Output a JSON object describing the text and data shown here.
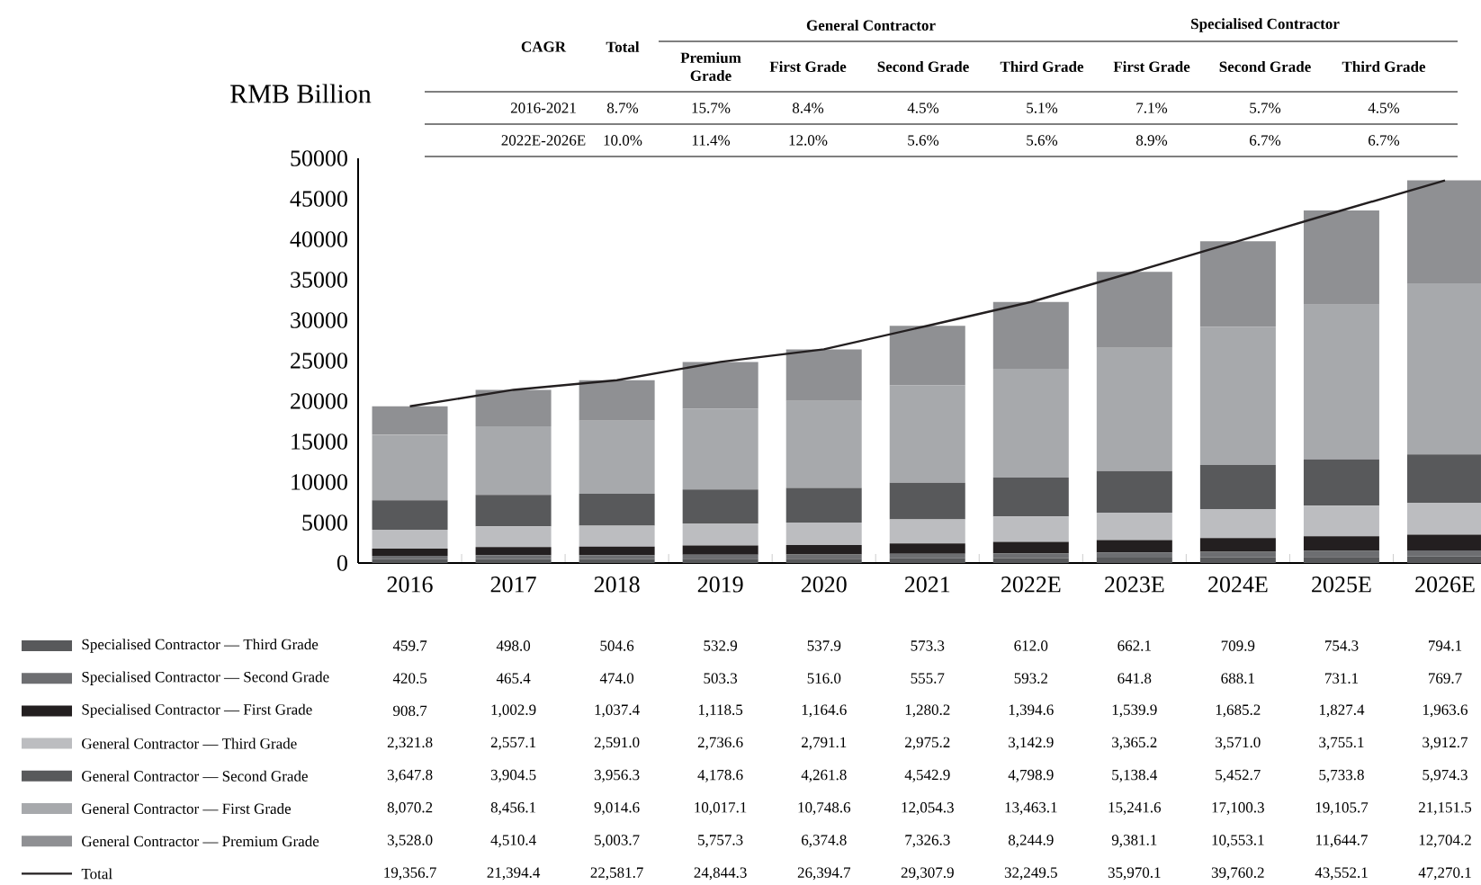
{
  "chart_data": {
    "type": "bar",
    "stacked": true,
    "ylabel": "RMB Billion",
    "categories": [
      "2016",
      "2017",
      "2018",
      "2019",
      "2020",
      "2021",
      "2022E",
      "2023E",
      "2024E",
      "2025E",
      "2026E"
    ],
    "ylim": [
      0,
      50000
    ],
    "yticks": [
      0,
      5000,
      10000,
      15000,
      20000,
      25000,
      30000,
      35000,
      40000,
      45000,
      50000
    ],
    "legend": "bottom",
    "marker": "none",
    "line_style": "solid",
    "annotations": [
      "CAGR",
      "Total",
      "General Contractor",
      "Specialised Contractor",
      "Premium Grade",
      "First Grade",
      "Second Grade",
      "Third Grade",
      "First Grade",
      "Second Grade",
      "Third Grade",
      "2016-2021",
      "8.7%",
      "15.7%",
      "8.4%",
      "4.5%",
      "5.1%",
      "7.1%",
      "5.7%",
      "4.5%",
      "2022E-2026E",
      "10.0%",
      "11.4%",
      "12.0%",
      "5.6%",
      "5.6%",
      "8.9%",
      "6.7%",
      "6.7%"
    ],
    "series": [
      {
        "name": "Specialised Contractor — Third Grade",
        "color": "#58595b",
        "values": [
          459.7,
          498.0,
          504.6,
          532.9,
          537.9,
          573.3,
          612.0,
          662.1,
          709.9,
          754.3,
          794.1
        ],
        "value_labels": [
          "459.7",
          "498.0",
          "504.6",
          "532.9",
          "537.9",
          "573.3",
          "612.0",
          "662.1",
          "709.9",
          "754.3",
          "794.1"
        ]
      },
      {
        "name": "Specialised Contractor — Second Grade",
        "color": "#6d6e71",
        "values": [
          420.5,
          465.4,
          474.0,
          503.3,
          516.0,
          555.7,
          593.2,
          641.8,
          688.1,
          731.1,
          769.7
        ],
        "value_labels": [
          "420.5",
          "465.4",
          "474.0",
          "503.3",
          "516.0",
          "555.7",
          "593.2",
          "641.8",
          "688.1",
          "731.1",
          "769.7"
        ]
      },
      {
        "name": "Specialised Contractor — First Grade",
        "color": "#231f20",
        "values": [
          908.7,
          1002.9,
          1037.4,
          1118.5,
          1164.6,
          1280.2,
          1394.6,
          1539.9,
          1685.2,
          1827.4,
          1963.6
        ],
        "value_labels": [
          "908.7",
          "1,002.9",
          "1,037.4",
          "1,118.5",
          "1,164.6",
          "1,280.2",
          "1,394.6",
          "1,539.9",
          "1,685.2",
          "1,827.4",
          "1,963.6"
        ]
      },
      {
        "name": "General Contractor — Third Grade",
        "color": "#bcbdc0",
        "values": [
          2321.8,
          2557.1,
          2591.0,
          2736.6,
          2791.1,
          2975.2,
          3142.9,
          3365.2,
          3571.0,
          3755.1,
          3912.7
        ],
        "value_labels": [
          "2,321.8",
          "2,557.1",
          "2,591.0",
          "2,736.6",
          "2,791.1",
          "2,975.2",
          "3,142.9",
          "3,365.2",
          "3,571.0",
          "3,755.1",
          "3,912.7"
        ]
      },
      {
        "name": "General Contractor — Second Grade",
        "color": "#58595b",
        "values": [
          3647.8,
          3904.5,
          3956.3,
          4178.6,
          4261.8,
          4542.9,
          4798.9,
          5138.4,
          5452.7,
          5733.8,
          5974.3
        ],
        "value_labels": [
          "3,647.8",
          "3,904.5",
          "3,956.3",
          "4,178.6",
          "4,261.8",
          "4,542.9",
          "4,798.9",
          "5,138.4",
          "5,452.7",
          "5,733.8",
          "5,974.3"
        ]
      },
      {
        "name": "General Contractor — First Grade",
        "color": "#a7a9ac",
        "values": [
          8070.2,
          8456.1,
          9014.6,
          10017.1,
          10748.6,
          12054.3,
          13463.1,
          15241.6,
          17100.3,
          19105.7,
          21151.5
        ],
        "value_labels": [
          "8,070.2",
          "8,456.1",
          "9,014.6",
          "10,017.1",
          "10,748.6",
          "12,054.3",
          "13,463.1",
          "15,241.6",
          "17,100.3",
          "19,105.7",
          "21,151.5"
        ]
      },
      {
        "name": "General Contractor — Premium Grade",
        "color": "#8f9093",
        "values": [
          3528.0,
          4510.4,
          5003.7,
          5757.3,
          6374.8,
          7326.3,
          8244.9,
          9381.1,
          10553.1,
          11644.7,
          12704.2
        ],
        "value_labels": [
          "3,528.0",
          "4,510.4",
          "5,003.7",
          "5,757.3",
          "6,374.8",
          "7,326.3",
          "8,244.9",
          "9,381.1",
          "10,553.1",
          "11,644.7",
          "12,704.2"
        ]
      },
      {
        "name": "Total",
        "type": "line",
        "color": "#231f20",
        "values": [
          19356.7,
          21394.4,
          22581.7,
          24844.3,
          26394.7,
          29307.9,
          32249.5,
          35970.1,
          39760.2,
          43552.1,
          47270.1
        ],
        "value_labels": [
          "19,356.7",
          "21,394.4",
          "22,581.7",
          "24,844.3",
          "26,394.7",
          "29,307.9",
          "32,249.5",
          "35,970.1",
          "39,760.2",
          "43,552.1",
          "47,270.1"
        ]
      }
    ]
  }
}
